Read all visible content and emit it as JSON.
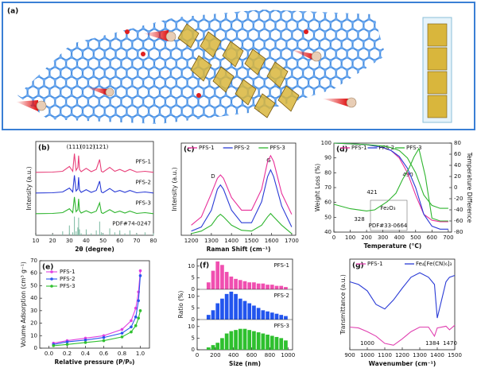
{
  "illustration": {
    "label": "(a)"
  },
  "chart_data": [
    {
      "type": "line",
      "label": "(b)",
      "x_label": "2θ (degree)",
      "y_label": "Intensity (a.u.)",
      "xlim": [
        10,
        80
      ],
      "xticks": [
        10,
        20,
        30,
        40,
        50,
        60,
        70,
        80
      ],
      "ylim": [
        0,
        1
      ],
      "x": [
        10,
        20,
        26,
        30,
        32,
        33,
        34,
        35,
        35.5,
        36,
        37,
        40,
        43,
        46,
        48,
        49,
        50,
        54,
        57,
        60,
        63,
        66,
        70,
        75,
        80
      ],
      "series": [
        {
          "name": "PFS-1",
          "color": "#e8407a",
          "values": [
            0.05,
            0.06,
            0.1,
            0.35,
            0.1,
            1.0,
            0.15,
            0.3,
            0.9,
            0.2,
            0.08,
            0.25,
            0.08,
            0.2,
            0.7,
            0.1,
            0.06,
            0.3,
            0.1,
            0.2,
            0.08,
            0.2,
            0.06,
            0.1,
            0.05
          ]
        },
        {
          "name": "PFS-2",
          "color": "#2a3bd6",
          "values": [
            0.05,
            0.06,
            0.1,
            0.3,
            0.1,
            0.95,
            0.15,
            0.25,
            0.85,
            0.2,
            0.08,
            0.22,
            0.08,
            0.18,
            0.65,
            0.1,
            0.06,
            0.28,
            0.1,
            0.18,
            0.08,
            0.18,
            0.06,
            0.1,
            0.05
          ]
        },
        {
          "name": "PFS-3",
          "color": "#2fb52f",
          "values": [
            0.05,
            0.06,
            0.1,
            0.3,
            0.1,
            0.9,
            0.15,
            0.25,
            0.8,
            0.2,
            0.08,
            0.2,
            0.08,
            0.18,
            0.6,
            0.1,
            0.06,
            0.25,
            0.1,
            0.18,
            0.08,
            0.18,
            0.06,
            0.1,
            0.05
          ]
        },
        {
          "name": "PDF#74-0247",
          "color": "#7ab8a0",
          "style": "stick",
          "values": [
            0.02,
            0.05,
            0.2,
            0.5,
            0.15,
            0.95,
            0.2,
            0.4,
            0.9,
            0.3,
            0.1,
            0.3,
            0.1,
            0.25,
            0.7,
            0.15,
            0.1,
            0.35,
            0.15,
            0.25,
            0.1,
            0.25,
            0.1,
            0.15,
            0.1
          ]
        }
      ],
      "annotations": [
        "(111)",
        "(012)",
        "(121)"
      ]
    },
    {
      "type": "line",
      "label": "(c)",
      "x_label": "Raman Shift (cm⁻¹)",
      "y_label": "Intensity (a.u.)",
      "xlim": [
        1150,
        1720
      ],
      "xticks": [
        1200,
        1300,
        1400,
        1500,
        1600,
        1700
      ],
      "ylim": [
        0,
        1.1
      ],
      "x": [
        1200,
        1250,
        1300,
        1330,
        1345,
        1360,
        1400,
        1450,
        1500,
        1550,
        1580,
        1595,
        1610,
        1650,
        1700
      ],
      "series": [
        {
          "name": "PFS-1",
          "color": "#e8309a",
          "values": [
            0.12,
            0.22,
            0.5,
            0.68,
            0.72,
            0.68,
            0.45,
            0.3,
            0.3,
            0.55,
            0.88,
            0.95,
            0.88,
            0.5,
            0.25
          ]
        },
        {
          "name": "PFS-2",
          "color": "#2a3bd6",
          "values": [
            0.05,
            0.1,
            0.3,
            0.55,
            0.6,
            0.55,
            0.3,
            0.15,
            0.15,
            0.4,
            0.7,
            0.78,
            0.7,
            0.35,
            0.1
          ]
        },
        {
          "name": "PFS-3",
          "color": "#2fb52f",
          "values": [
            0.02,
            0.05,
            0.12,
            0.22,
            0.25,
            0.22,
            0.12,
            0.06,
            0.05,
            0.12,
            0.22,
            0.26,
            0.22,
            0.12,
            0.02
          ]
        }
      ],
      "annotations": [
        "D",
        "G"
      ]
    },
    {
      "type": "line",
      "label": "(d)",
      "x_label": "Temperature (°C)",
      "y_label": "Weight Loss (%)",
      "y2_label": "Temperature Difference",
      "xlim": [
        0,
        720
      ],
      "xticks": [
        0,
        100,
        200,
        300,
        400,
        500,
        600,
        700
      ],
      "ylim": [
        40,
        100
      ],
      "yticks": [
        40,
        50,
        60,
        70,
        80,
        90,
        100
      ],
      "y2lim": [
        -80,
        80
      ],
      "y2ticks": [
        -80,
        -60,
        -40,
        -20,
        0,
        20,
        40,
        60,
        80
      ],
      "x": [
        0,
        100,
        200,
        300,
        350,
        400,
        450,
        500,
        550,
        600,
        650,
        700
      ],
      "series": [
        {
          "name": "PFS-1",
          "color": "#e8309a",
          "values": [
            100,
            99.5,
            99,
            97,
            95,
            90,
            80,
            65,
            52,
            48,
            47,
            47
          ]
        },
        {
          "name": "PFS-2",
          "color": "#2a3bd6",
          "values": [
            100,
            99.5,
            99,
            97,
            95,
            91,
            83,
            70,
            52,
            44,
            42,
            42
          ]
        },
        {
          "name": "PFS-3",
          "color": "#2fb52f",
          "values": [
            100,
            99.5,
            99,
            98,
            97,
            95,
            90,
            80,
            65,
            58,
            56,
            56
          ]
        },
        {
          "color": "#2fb52f",
          "axis": "y2",
          "x": [
            0,
            100,
            200,
            250,
            328,
            380,
            421,
            460,
            490,
            520,
            560,
            600,
            650,
            700
          ],
          "values": [
            -30,
            -38,
            -42,
            -40,
            -25,
            -10,
            15,
            35,
            55,
            70,
            20,
            -55,
            -60,
            -60
          ]
        }
      ],
      "annotations": [
        "328",
        "421",
        "490",
        "Fe₂O₃",
        "PDF#33-0664"
      ]
    },
    {
      "type": "line",
      "label": "(e)",
      "x_label": "Relative pressure (P/P₀)",
      "y_label": "Volume Adsorption (cm³ g⁻¹)",
      "xlim": [
        -0.1,
        1.1
      ],
      "xticks": [
        {
          "value": 0,
          "label": "0.0"
        },
        0.2,
        0.4,
        0.6,
        0.8,
        {
          "value": 1,
          "label": "1.0"
        }
      ],
      "ylim": [
        0,
        70
      ],
      "yticks": [
        0,
        10,
        20,
        30,
        40,
        50,
        60,
        70
      ],
      "markers": true,
      "x": [
        0.05,
        0.2,
        0.4,
        0.6,
        0.8,
        0.9,
        0.95,
        0.98,
        1.0
      ],
      "series": [
        {
          "name": "PFS-1",
          "color": "#e040e0",
          "values": [
            4,
            6,
            8,
            10,
            15,
            22,
            32,
            45,
            62
          ]
        },
        {
          "name": "PFS-2",
          "color": "#2a55ee",
          "values": [
            3,
            5,
            6.5,
            8.5,
            12,
            17,
            25,
            38,
            58
          ]
        },
        {
          "name": "PFS-3",
          "color": "#30c030",
          "values": [
            2,
            3,
            4.5,
            6,
            9,
            13,
            18,
            24,
            30
          ]
        }
      ]
    },
    {
      "type": "histogram",
      "label": "(f)",
      "x_label": "Size (nm)",
      "y_label": "Ratio (%)",
      "xlim": [
        0,
        1050
      ],
      "xticks": [
        0,
        200,
        400,
        600,
        800,
        1000
      ],
      "ylim": [
        0,
        13
      ],
      "yticks": [
        0,
        5,
        10
      ],
      "bins": [
        100,
        150,
        200,
        250,
        300,
        350,
        400,
        450,
        500,
        550,
        600,
        650,
        700,
        750,
        800,
        850,
        900,
        950,
        1000
      ],
      "series": [
        {
          "name": "PFS-1",
          "color": "#f04fb0",
          "values": [
            3,
            8,
            12,
            10.5,
            7.5,
            5.5,
            4.5,
            4,
            3.5,
            3,
            3,
            2.5,
            2.5,
            2,
            2,
            1.5,
            1.5,
            1
          ]
        },
        {
          "name": "PFS-2",
          "color": "#2255ee",
          "values": [
            2,
            4,
            7,
            9,
            11,
            12,
            11,
            9,
            8,
            7,
            6,
            5,
            4,
            3.5,
            3,
            2.5,
            2,
            1.5
          ]
        },
        {
          "name": "PFS-3",
          "color": "#2ec02e",
          "values": [
            1,
            2,
            3,
            5,
            7,
            8,
            8.5,
            9,
            9,
            8.5,
            8,
            7.5,
            7,
            6.5,
            6,
            5.5,
            5,
            4
          ]
        }
      ]
    },
    {
      "type": "line",
      "label": "(g)",
      "x_label": "Wavenumber (cm⁻¹)",
      "y_label": "Transmittance (a.u.)",
      "xlim": [
        900,
        1500
      ],
      "xticks": [
        900,
        1000,
        1100,
        1200,
        1300,
        1400,
        1500
      ],
      "ylim": [
        0,
        1
      ],
      "x": [
        900,
        950,
        1000,
        1050,
        1100,
        1150,
        1200,
        1250,
        1300,
        1350,
        1384,
        1400,
        1450,
        1470,
        1500
      ],
      "series": [
        {
          "name": "PFS-1",
          "color": "#e040b0",
          "values": [
            0.25,
            0.24,
            0.2,
            0.15,
            0.07,
            0.05,
            0.12,
            0.2,
            0.25,
            0.25,
            0.15,
            0.24,
            0.26,
            0.22,
            0.27
          ]
        },
        {
          "name": "Fe₄[Fe(CN)₆]₃",
          "color": "#2a3bd6",
          "values": [
            0.75,
            0.72,
            0.65,
            0.5,
            0.45,
            0.55,
            0.68,
            0.8,
            0.85,
            0.8,
            0.72,
            0.35,
            0.75,
            0.8,
            0.82
          ]
        }
      ],
      "annotations": [
        "1000",
        "1384",
        "1470"
      ]
    }
  ]
}
